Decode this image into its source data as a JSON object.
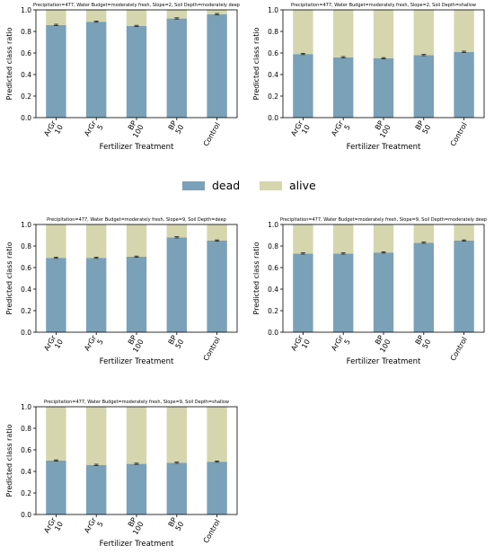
{
  "legend": {
    "entries": [
      {
        "name": "dead",
        "color": "#7aa1b8"
      },
      {
        "name": "alive",
        "color": "#d5d6ad"
      }
    ]
  },
  "colors": {
    "dead": "#7aa1b8",
    "alive": "#d5d6ad",
    "errorbar": "#222222"
  },
  "chart_data": [
    {
      "type": "bar",
      "stacked": true,
      "title": "Precipitation=477, Water Budget=moderately fresh, Slope=2, Soil Depth=moderately deep",
      "xlabel": "Fertilizer Treatment",
      "ylabel": "Predicted class ratio",
      "ylim": [
        0,
        1.0
      ],
      "yticks": [
        "0.0",
        "0.2",
        "0.4",
        "0.6",
        "0.8",
        "1.0"
      ],
      "categories": [
        "ArGr\n10",
        "ArGr\n5",
        "BP\n100",
        "BP\n50",
        "Control"
      ],
      "series": [
        {
          "name": "dead",
          "values": [
            0.86,
            0.89,
            0.85,
            0.92,
            0.96
          ]
        },
        {
          "name": "alive",
          "values": [
            0.14,
            0.11,
            0.15,
            0.08,
            0.04
          ]
        }
      ]
    },
    {
      "type": "bar",
      "stacked": true,
      "title": "Precipitation=477, Water Budget=moderately fresh, Slope=2, Soil Depth=shallow",
      "xlabel": "Fertilizer Treatment",
      "ylabel": "Predicted class ratio",
      "ylim": [
        0,
        1.0
      ],
      "yticks": [
        "0.0",
        "0.2",
        "0.4",
        "0.6",
        "0.8",
        "1.0"
      ],
      "categories": [
        "ArGr\n10",
        "ArGr\n5",
        "BP\n100",
        "BP\n50",
        "Control"
      ],
      "series": [
        {
          "name": "dead",
          "values": [
            0.59,
            0.56,
            0.55,
            0.58,
            0.61
          ]
        },
        {
          "name": "alive",
          "values": [
            0.41,
            0.44,
            0.45,
            0.42,
            0.39
          ]
        }
      ]
    },
    {
      "type": "bar",
      "stacked": true,
      "title": "Precipitation=477, Water Budget=moderately fresh, Slope=9, Soil Depth=deep",
      "xlabel": "Fertilizer Treatment",
      "ylabel": "Predicted class ratio",
      "ylim": [
        0,
        1.0
      ],
      "yticks": [
        "0.0",
        "0.2",
        "0.4",
        "0.6",
        "0.8",
        "1.0"
      ],
      "categories": [
        "ArGr\n10",
        "ArGr\n5",
        "BP\n100",
        "BP\n50",
        "Control"
      ],
      "series": [
        {
          "name": "dead",
          "values": [
            0.69,
            0.69,
            0.7,
            0.88,
            0.85
          ]
        },
        {
          "name": "alive",
          "values": [
            0.31,
            0.31,
            0.3,
            0.12,
            0.15
          ]
        }
      ]
    },
    {
      "type": "bar",
      "stacked": true,
      "title": "Precipitation=477, Water Budget=moderately fresh, Slope=9, Soil Depth=moderately deep",
      "xlabel": "Fertilizer Treatment",
      "ylabel": "Predicted class ratio",
      "ylim": [
        0,
        1.0
      ],
      "yticks": [
        "0.0",
        "0.2",
        "0.4",
        "0.6",
        "0.8",
        "1.0"
      ],
      "categories": [
        "ArGr\n10",
        "ArGr\n5",
        "BP\n100",
        "BP\n50",
        "Control"
      ],
      "series": [
        {
          "name": "dead",
          "values": [
            0.73,
            0.73,
            0.74,
            0.83,
            0.85
          ]
        },
        {
          "name": "alive",
          "values": [
            0.27,
            0.27,
            0.26,
            0.17,
            0.15
          ]
        }
      ]
    },
    {
      "type": "bar",
      "stacked": true,
      "title": "Precipitation=477, Water Budget=moderately fresh, Slope=9, Soil Depth=shallow",
      "xlabel": "Fertilizer Treatment",
      "ylabel": "Predicted class ratio",
      "ylim": [
        0,
        1.0
      ],
      "yticks": [
        "0.0",
        "0.2",
        "0.4",
        "0.6",
        "0.8",
        "1.0"
      ],
      "categories": [
        "ArGr\n10",
        "ArGr\n5",
        "BP\n100",
        "BP\n50",
        "Control"
      ],
      "series": [
        {
          "name": "dead",
          "values": [
            0.5,
            0.46,
            0.47,
            0.48,
            0.49
          ]
        },
        {
          "name": "alive",
          "values": [
            0.5,
            0.54,
            0.53,
            0.52,
            0.51
          ]
        }
      ]
    }
  ]
}
